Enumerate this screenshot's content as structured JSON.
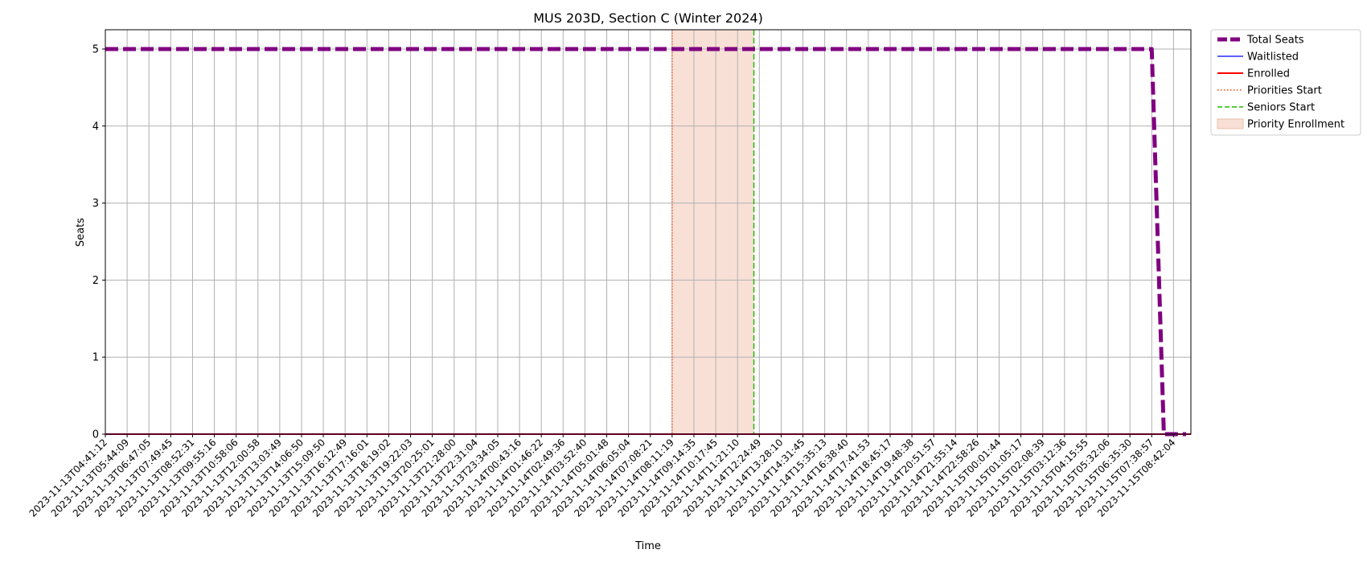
{
  "chart_data": {
    "type": "line",
    "title": "MUS 203D, Section C (Winter 2024)",
    "xlabel": "Time",
    "ylabel": "Seats",
    "ylim": [
      0,
      5.25
    ],
    "yticks": [
      0,
      1,
      2,
      3,
      4,
      5
    ],
    "grid": true,
    "legend_position": "outside-top-right",
    "x": [
      "2023-11-13T04:41:12",
      "2023-11-13T05:44:09",
      "2023-11-13T06:47:05",
      "2023-11-13T07:49:45",
      "2023-11-13T08:52:31",
      "2023-11-13T09:55:16",
      "2023-11-13T10:58:06",
      "2023-11-13T12:00:58",
      "2023-11-13T13:03:49",
      "2023-11-13T14:06:50",
      "2023-11-13T15:09:50",
      "2023-11-13T16:12:49",
      "2023-11-13T17:16:01",
      "2023-11-13T18:19:02",
      "2023-11-13T19:22:03",
      "2023-11-13T20:25:01",
      "2023-11-13T21:28:00",
      "2023-11-13T22:31:04",
      "2023-11-13T23:34:05",
      "2023-11-14T00:43:16",
      "2023-11-14T01:46:22",
      "2023-11-14T02:49:36",
      "2023-11-14T03:52:40",
      "2023-11-14T05:01:48",
      "2023-11-14T06:05:04",
      "2023-11-14T07:08:21",
      "2023-11-14T08:11:19",
      "2023-11-14T09:14:35",
      "2023-11-14T10:17:45",
      "2023-11-14T11:21:10",
      "2023-11-14T12:24:49",
      "2023-11-14T13:28:10",
      "2023-11-14T14:31:45",
      "2023-11-14T15:35:13",
      "2023-11-14T16:38:40",
      "2023-11-14T17:41:53",
      "2023-11-14T18:45:17",
      "2023-11-14T19:48:38",
      "2023-11-14T20:51:57",
      "2023-11-14T21:55:14",
      "2023-11-14T22:58:26",
      "2023-11-15T00:01:44",
      "2023-11-15T01:05:17",
      "2023-11-15T02:08:39",
      "2023-11-15T03:12:36",
      "2023-11-15T04:15:55",
      "2023-11-15T05:32:06",
      "2023-11-15T06:35:30",
      "2023-11-15T07:38:57",
      "2023-11-15T08:42:04"
    ],
    "series": [
      {
        "name": "Total Seats",
        "color": "#800080",
        "style": "dashed-thick",
        "values": [
          5,
          5,
          5,
          5,
          5,
          5,
          5,
          5,
          5,
          5,
          5,
          5,
          5,
          5,
          5,
          5,
          5,
          5,
          5,
          5,
          5,
          5,
          5,
          5,
          5,
          5,
          5,
          5,
          5,
          5,
          5,
          5,
          5,
          5,
          5,
          5,
          5,
          5,
          5,
          5,
          5,
          5,
          5,
          5,
          5,
          5,
          5,
          5,
          5,
          0
        ]
      },
      {
        "name": "Waitlisted",
        "color": "#0000ff",
        "style": "solid-thin",
        "values": [
          0,
          0,
          0,
          0,
          0,
          0,
          0,
          0,
          0,
          0,
          0,
          0,
          0,
          0,
          0,
          0,
          0,
          0,
          0,
          0,
          0,
          0,
          0,
          0,
          0,
          0,
          0,
          0,
          0,
          0,
          0,
          0,
          0,
          0,
          0,
          0,
          0,
          0,
          0,
          0,
          0,
          0,
          0,
          0,
          0,
          0,
          0,
          0,
          0,
          0
        ]
      },
      {
        "name": "Enrolled",
        "color": "#ff0000",
        "style": "solid",
        "values": [
          0,
          0,
          0,
          0,
          0,
          0,
          0,
          0,
          0,
          0,
          0,
          0,
          0,
          0,
          0,
          0,
          0,
          0,
          0,
          0,
          0,
          0,
          0,
          0,
          0,
          0,
          0,
          0,
          0,
          0,
          0,
          0,
          0,
          0,
          0,
          0,
          0,
          0,
          0,
          0,
          0,
          0,
          0,
          0,
          0,
          0,
          0,
          0,
          0,
          0
        ]
      }
    ],
    "markers": [
      {
        "name": "Priorities Start",
        "color": "#ff4500",
        "style": "dotted",
        "x_index": 26
      },
      {
        "name": "Seniors Start",
        "color": "#22bb00",
        "style": "dashed",
        "x_index": 29.75
      }
    ],
    "spans": [
      {
        "name": "Priority Enrollment",
        "color": "#f4c7b4",
        "from_index": 26,
        "to_index": 29.75
      }
    ]
  }
}
